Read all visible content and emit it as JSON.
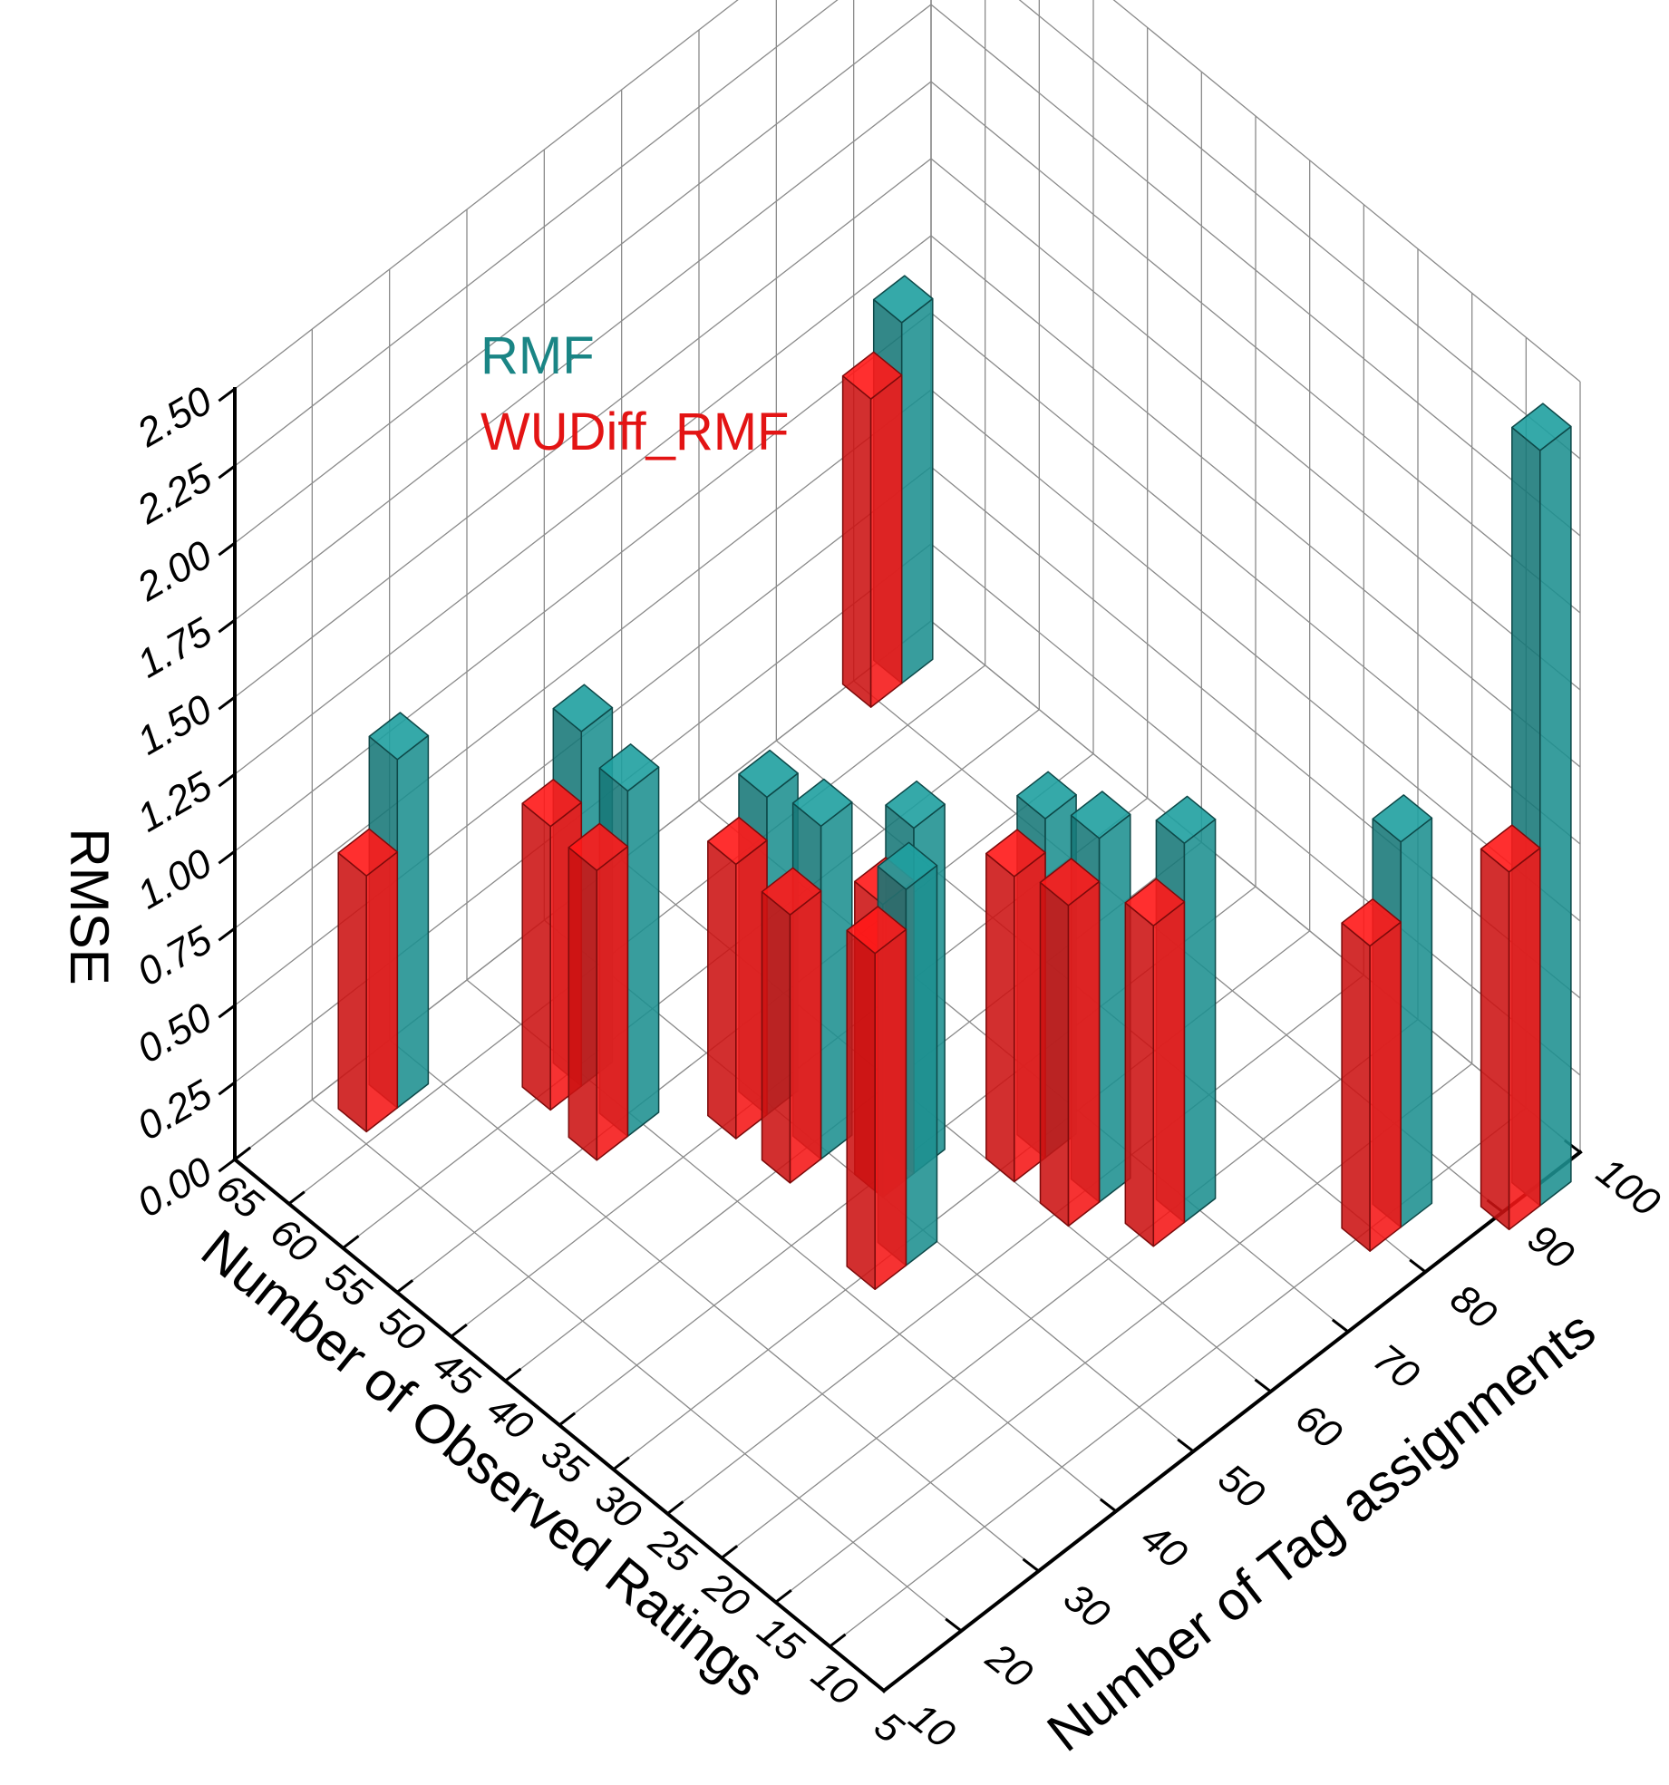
{
  "chart_data": {
    "type": "bar",
    "subtype": "3d-bar",
    "title": "",
    "zlabel": "RMSE",
    "xlabel": "Number of Observed Ratings",
    "ylabel": "Number of Tag assignments",
    "zlim": [
      0,
      2.5
    ],
    "xlim": [
      5,
      65
    ],
    "ylim": [
      10,
      100
    ],
    "z_ticks": [
      "0.00",
      "0.25",
      "0.50",
      "0.75",
      "1.00",
      "1.25",
      "1.50",
      "1.75",
      "2.00",
      "2.25",
      "2.50"
    ],
    "x_ticks": [
      "5",
      "10",
      "15",
      "20",
      "25",
      "30",
      "35",
      "40",
      "45",
      "50",
      "55",
      "60",
      "65"
    ],
    "y_ticks": [
      "10",
      "20",
      "30",
      "40",
      "50",
      "60",
      "70",
      "80",
      "90",
      "100"
    ],
    "grid": true,
    "legend_position": "top-left inside plot",
    "series": [
      {
        "name": "RMF",
        "color": "#1a8585",
        "points": [
          {
            "x": 5,
            "y": 95,
            "z": 2.45
          },
          {
            "x": 10,
            "y": 84,
            "z": 1.25
          },
          {
            "x": 20,
            "y": 70,
            "z": 1.23
          },
          {
            "x": 25,
            "y": 66,
            "z": 1.18
          },
          {
            "x": 30,
            "y": 66,
            "z": 1.1
          },
          {
            "x": 30,
            "y": 48,
            "z": 1.22
          },
          {
            "x": 35,
            "y": 56,
            "z": 1.12
          },
          {
            "x": 40,
            "y": 51,
            "z": 1.08
          },
          {
            "x": 45,
            "y": 51,
            "z": 1.03
          },
          {
            "x": 50,
            "y": 40,
            "z": 1.12
          },
          {
            "x": 55,
            "y": 41,
            "z": 1.15
          },
          {
            "x": 62,
            "y": 27,
            "z": 1.13
          },
          {
            "x": 64,
            "y": 95,
            "z": 1.17
          }
        ]
      },
      {
        "name": "WUDiff_RMF",
        "color": "#e31414",
        "points": [
          {
            "x": 5,
            "y": 91,
            "z": 1.16
          },
          {
            "x": 10,
            "y": 80,
            "z": 0.99
          },
          {
            "x": 20,
            "y": 66,
            "z": 1.04
          },
          {
            "x": 25,
            "y": 62,
            "z": 1.04
          },
          {
            "x": 30,
            "y": 62,
            "z": 0.99
          },
          {
            "x": 30,
            "y": 44,
            "z": 1.09
          },
          {
            "x": 35,
            "y": 52,
            "z": 0.95
          },
          {
            "x": 40,
            "y": 47,
            "z": 0.87
          },
          {
            "x": 45,
            "y": 47,
            "z": 0.89
          },
          {
            "x": 50,
            "y": 36,
            "z": 0.94
          },
          {
            "x": 55,
            "y": 37,
            "z": 0.92
          },
          {
            "x": 62,
            "y": 23,
            "z": 0.83
          },
          {
            "x": 64,
            "y": 91,
            "z": 1.0
          }
        ]
      }
    ]
  }
}
